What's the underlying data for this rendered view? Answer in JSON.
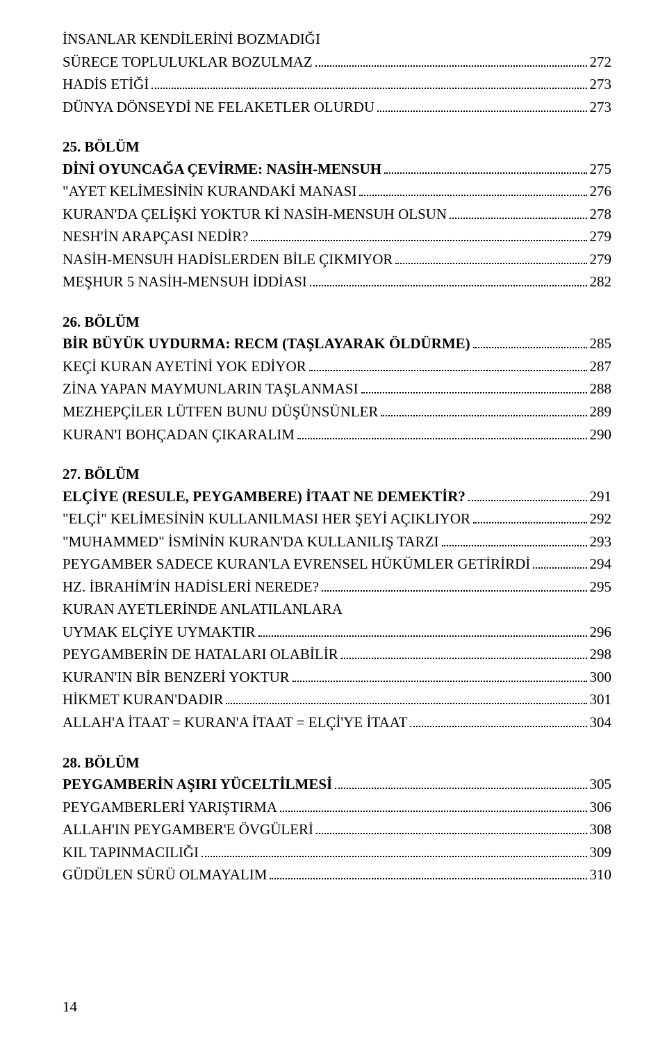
{
  "block1": {
    "line1": "İNSANLAR KENDİLERİNİ BOZMADIĞI",
    "line2": "SÜRECE TOPLULUKLAR BOZULMAZ",
    "page_line2": "272",
    "line3": "HADİS ETİĞİ",
    "page_line3": "273",
    "line4": "DÜNYA DÖNSEYDİ NE FELAKETLER OLURDU",
    "page_line4": "273"
  },
  "ch25": {
    "num": "25. BÖLÜM",
    "title": "DİNİ OYUNCAĞA ÇEVİRME: NASİH-MENSUH",
    "title_page": "275",
    "l1": "\"AYET KELİMESİNİN KURANDAKİ MANASI",
    "p1": "276",
    "l2": "KURAN'DA ÇELİŞKİ YOKTUR Kİ NASİH-MENSUH OLSUN",
    "p2": "278",
    "l3": "NESH'İN ARAPÇASI NEDİR?",
    "p3": "279",
    "l4": "NASİH-MENSUH HADİSLERDEN BİLE ÇIKMIYOR",
    "p4": "279",
    "l5": "MEŞHUR 5 NASİH-MENSUH İDDİASI",
    "p5": "282"
  },
  "ch26": {
    "num": "26. BÖLÜM",
    "title": "BİR BÜYÜK UYDURMA: RECM (TAŞLAYARAK ÖLDÜRME)",
    "title_page": "285",
    "l1": "KEÇİ KURAN AYETİNİ YOK EDİYOR",
    "p1": "287",
    "l2": "ZİNA YAPAN MAYMUNLARIN TAŞLANMASI",
    "p2": "288",
    "l3": "MEZHEPÇİLER LÜTFEN BUNU DÜŞÜNSÜNLER",
    "p3": "289",
    "l4": "KURAN'I BOHÇADAN ÇIKARALIM",
    "p4": "290"
  },
  "ch27": {
    "num": "27. BÖLÜM",
    "title": "ELÇİYE (RESULE, PEYGAMBERE) İTAAT NE DEMEKTİR?",
    "title_page": "291",
    "l1": "\"ELÇİ\" KELİMESİNİN KULLANILMASI HER ŞEYİ AÇIKLIYOR",
    "p1": "292",
    "l2": "\"MUHAMMED\" İSMİNİN KURAN'DA KULLANILIŞ TARZI",
    "p2": "293",
    "l3": "PEYGAMBER SADECE KURAN'LA EVRENSEL HÜKÜMLER GETİRİRDİ",
    "p3": "294",
    "l4": "HZ. İBRAHİM'İN HADİSLERİ NEREDE?",
    "p4": "295",
    "l5a": "KURAN AYETLERİNDE ANLATILANLARA",
    "l5b": "UYMAK ELÇİYE UYMAKTIR",
    "p5": "296",
    "l6": "PEYGAMBERİN DE HATALARI OLABİLİR",
    "p6": "298",
    "l7": "KURAN'IN BİR BENZERİ YOKTUR",
    "p7": "300",
    "l8": "HİKMET KURAN'DADIR",
    "p8": "301",
    "l9": "ALLAH'A İTAAT = KURAN'A İTAAT = ELÇİ'YE İTAAT",
    "p9": "304"
  },
  "ch28": {
    "num": "28. BÖLÜM",
    "title": "PEYGAMBERİN AŞIRI YÜCELTİLMESİ",
    "title_page": "305",
    "l1": "PEYGAMBERLERİ YARIŞTIRMA",
    "p1": "306",
    "l2": "ALLAH'IN PEYGAMBER'E ÖVGÜLERİ",
    "p2": "308",
    "l3": "KIL TAPINMACILIĞI",
    "p3": "309",
    "l4": "GÜDÜLEN SÜRÜ OLMAYALIM",
    "p4": "310"
  },
  "pagenum": "14"
}
